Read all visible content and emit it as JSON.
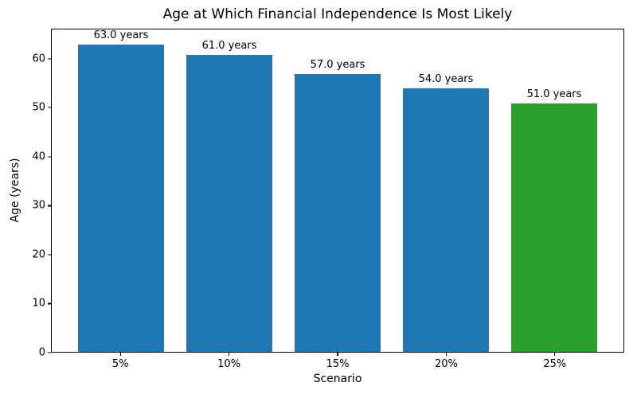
{
  "chart_data": {
    "type": "bar",
    "title": "Age at Which Financial Independence Is Most Likely",
    "xlabel": "Scenario",
    "ylabel": "Age (years)",
    "categories": [
      "5%",
      "10%",
      "15%",
      "20%",
      "25%"
    ],
    "values": [
      63.0,
      61.0,
      57.0,
      54.0,
      51.0
    ],
    "bar_labels": [
      "63.0 years",
      "61.0 years",
      "57.0 years",
      "54.0 years",
      "51.0 years"
    ],
    "bar_colors": [
      "#1f77b4",
      "#1f77b4",
      "#1f77b4",
      "#1f77b4",
      "#2ca02c"
    ],
    "ylim": [
      0,
      66.15
    ],
    "y_ticks": [
      0,
      10,
      20,
      30,
      40,
      50,
      60
    ],
    "grid": false,
    "legend_position": "none",
    "background_color": "#ffffff",
    "spine_color": "#000000"
  }
}
